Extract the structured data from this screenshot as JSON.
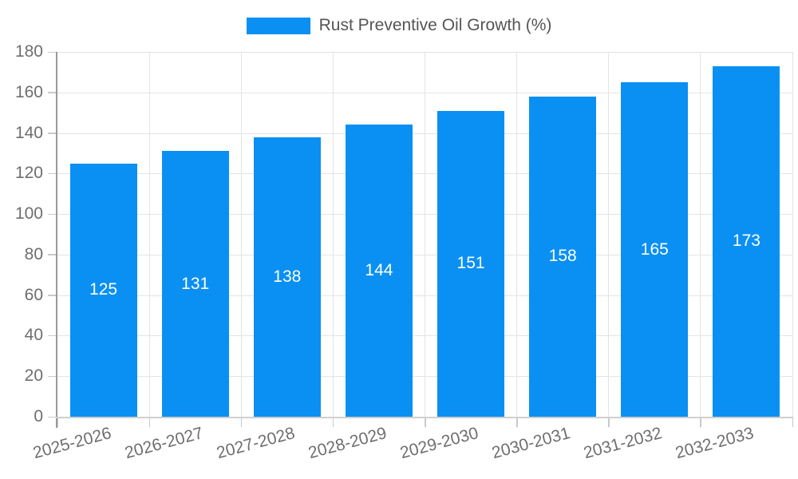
{
  "chart_data": {
    "type": "bar",
    "title": "Rust Preventive Oil Growth (%)",
    "categories": [
      "2025-2026",
      "2026-2027",
      "2027-2028",
      "2028-2029",
      "2029-2030",
      "2030-2031",
      "2031-2032",
      "2032-2033"
    ],
    "values": [
      125,
      131,
      138,
      144,
      151,
      158,
      165,
      173
    ],
    "series": [
      {
        "name": "Rust Preventive Oil Growth (%)",
        "values": [
          125,
          131,
          138,
          144,
          151,
          158,
          165,
          173
        ]
      }
    ],
    "xlabel": "",
    "ylabel": "",
    "ylim": [
      0,
      180
    ],
    "yticks": [
      0,
      20,
      40,
      60,
      80,
      100,
      120,
      140,
      160,
      180
    ],
    "grid": true,
    "legend_position": "top-center",
    "bar_label_position": "inside-center",
    "x_label_rotation_deg": -15,
    "colors": {
      "bar": "#0a90f2",
      "bar_label": "#ffffff",
      "grid_line": "#e4e4e4",
      "y_axis_line": "#999999",
      "x_axis_line": "#d0d0d0",
      "axis_tick": "#c9c9c9",
      "tick_label": "#6e6e6e",
      "legend_text": "#555555",
      "background": "#ffffff"
    }
  }
}
